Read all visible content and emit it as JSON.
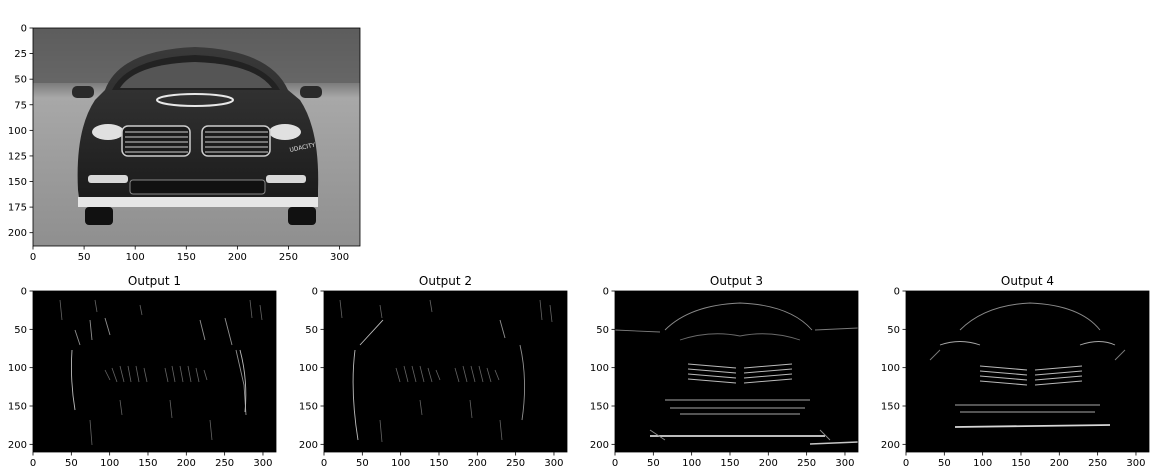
{
  "chart_data": [
    {
      "type": "image",
      "id": "original",
      "title": "",
      "content": "grayscale photo of car (front view, Udacity logo)",
      "xlim": [
        0,
        320
      ],
      "ylim": [
        0,
        213
      ],
      "xticks": [
        0,
        50,
        100,
        150,
        200,
        250,
        300
      ],
      "yticks": [
        0,
        25,
        50,
        75,
        100,
        125,
        150,
        175,
        200
      ],
      "colormap": "gray"
    },
    {
      "type": "image",
      "id": "out1",
      "title": "Output 1",
      "content": "vertical edge response (filter 1)",
      "xlim": [
        0,
        317
      ],
      "ylim": [
        0,
        210
      ],
      "xticks": [
        0,
        50,
        100,
        150,
        200,
        250,
        300
      ],
      "yticks": [
        0,
        50,
        100,
        150,
        200
      ],
      "colormap": "gray"
    },
    {
      "type": "image",
      "id": "out2",
      "title": "Output 2",
      "content": "vertical edge response (filter 2)",
      "xlim": [
        0,
        317
      ],
      "ylim": [
        0,
        210
      ],
      "xticks": [
        0,
        50,
        100,
        150,
        200,
        250,
        300
      ],
      "yticks": [
        0,
        50,
        100,
        150,
        200
      ],
      "colormap": "gray"
    },
    {
      "type": "image",
      "id": "out3",
      "title": "Output 3",
      "content": "horizontal edge response (filter 3)",
      "xlim": [
        0,
        317
      ],
      "ylim": [
        0,
        210
      ],
      "xticks": [
        0,
        50,
        100,
        150,
        200,
        250,
        300
      ],
      "yticks": [
        0,
        50,
        100,
        150,
        200
      ],
      "colormap": "gray"
    },
    {
      "type": "image",
      "id": "out4",
      "title": "Output 4",
      "content": "horizontal edge response (filter 4)",
      "xlim": [
        0,
        317
      ],
      "ylim": [
        0,
        210
      ],
      "xticks": [
        0,
        50,
        100,
        150,
        200,
        250,
        300
      ],
      "yticks": [
        0,
        50,
        100,
        150,
        200
      ],
      "colormap": "gray"
    }
  ],
  "car_badge_text": "UDACITY"
}
